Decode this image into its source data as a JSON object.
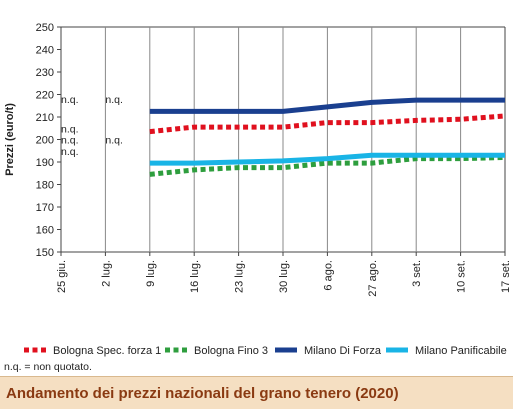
{
  "chart_data": {
    "type": "line",
    "ylabel": "Prezzi (euro/t)",
    "ylim": [
      150,
      250
    ],
    "yticks": [
      150,
      160,
      170,
      180,
      190,
      200,
      210,
      220,
      230,
      240,
      250
    ],
    "categories": [
      "25 giu.",
      "2 lug.",
      "9 lug.",
      "16 lug.",
      "23 lug.",
      "30 lug.",
      "6 ago.",
      "27 ago.",
      "3 set.",
      "10 set.",
      "17 set."
    ],
    "series": [
      {
        "name": "Bologna Spec. forza 1",
        "color": "#e0101e",
        "style": "dotted",
        "values": [
          null,
          null,
          203.5,
          205.5,
          205.5,
          205.5,
          207.5,
          207.5,
          208.5,
          209,
          210.5
        ]
      },
      {
        "name": "Bologna Fino 3",
        "color": "#2e9e3e",
        "style": "dotted",
        "values": [
          null,
          null,
          184.5,
          186.5,
          187.5,
          187.5,
          189.5,
          189.5,
          191.5,
          191.5,
          192
        ]
      },
      {
        "name": "Milano Di Forza",
        "color": "#1a3f8f",
        "style": "solid",
        "values": [
          null,
          null,
          212.5,
          212.5,
          212.5,
          212.5,
          214.5,
          216.5,
          217.5,
          217.5,
          217.5
        ]
      },
      {
        "name": "Milano Panificabile",
        "color": "#19b4e6",
        "style": "solid",
        "values": [
          null,
          null,
          189.5,
          189.5,
          190,
          190.5,
          191.5,
          193,
          193,
          193,
          193
        ]
      }
    ],
    "annotations": [
      {
        "text": "n.q.",
        "category": "25 giu.",
        "y": 218
      },
      {
        "text": "n.q.",
        "category": "2 lug.",
        "y": 218
      },
      {
        "text": "n.q.",
        "category": "25 giu.",
        "y": 205
      },
      {
        "text": "n.q.",
        "category": "25 giu.",
        "y": 200
      },
      {
        "text": "n.q.",
        "category": "2 lug.",
        "y": 200
      },
      {
        "text": "n.q.",
        "category": "25 giu.",
        "y": 195
      }
    ],
    "note": "n.q. = non quotato.",
    "caption": "Andamento dei prezzi nazionali del grano tenero (2020)",
    "grid": false,
    "legend": "bottom"
  }
}
